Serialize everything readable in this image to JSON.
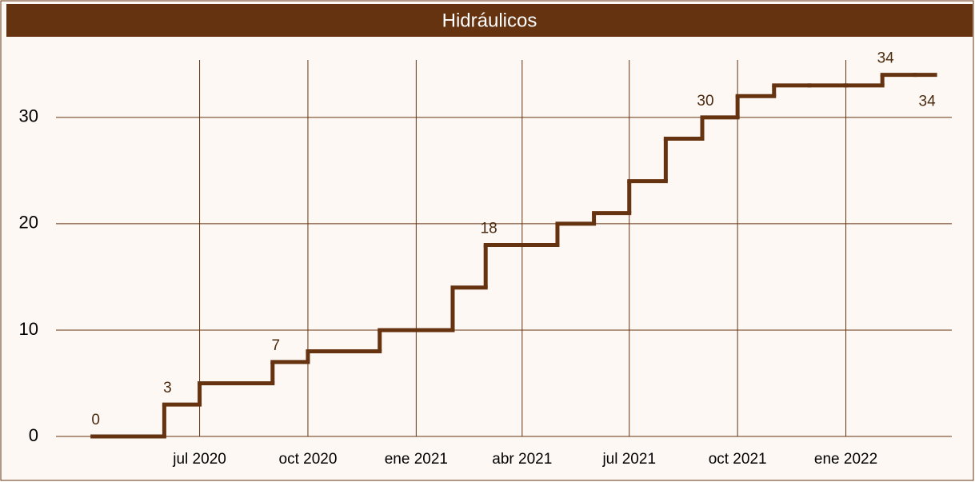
{
  "chart_data": {
    "type": "step",
    "title": "Hidráulicos",
    "x": [
      "2020-04",
      "2020-05",
      "2020-06",
      "2020-07",
      "2020-08",
      "2020-09",
      "2020-10",
      "2020-11",
      "2020-12",
      "2021-01",
      "2021-02",
      "2021-03",
      "2021-04",
      "2021-05",
      "2021-06",
      "2021-07",
      "2021-08",
      "2021-09",
      "2021-10",
      "2021-11",
      "2021-12",
      "2022-01",
      "2022-02",
      "2022-03"
    ],
    "series": [
      {
        "color": "#663311",
        "values": [
          0,
          0,
          3,
          5,
          5,
          7,
          8,
          8,
          10,
          10,
          14,
          18,
          18,
          20,
          21,
          24,
          28,
          30,
          32,
          33,
          33,
          33,
          34,
          34
        ],
        "value_labels": [
          "0",
          null,
          "3",
          null,
          null,
          "7",
          null,
          null,
          null,
          null,
          null,
          "18",
          null,
          null,
          null,
          null,
          null,
          "30",
          null,
          null,
          null,
          null,
          "34",
          "34"
        ]
      }
    ],
    "xlim": [
      "2020-03",
      "2022-04"
    ],
    "xticks": [
      {
        "value": "2020-07",
        "label": "jul 2020"
      },
      {
        "value": "2020-10",
        "label": "oct 2020"
      },
      {
        "value": "2021-01",
        "label": "ene 2021"
      },
      {
        "value": "2021-04",
        "label": "abr 2021"
      },
      {
        "value": "2021-07",
        "label": "jul 2021"
      },
      {
        "value": "2021-10",
        "label": "oct 2021"
      },
      {
        "value": "2022-01",
        "label": "ene 2022"
      }
    ],
    "ylim": [
      0,
      35.4
    ],
    "yticks": [
      0,
      10,
      20,
      30
    ],
    "grid": true
  }
}
